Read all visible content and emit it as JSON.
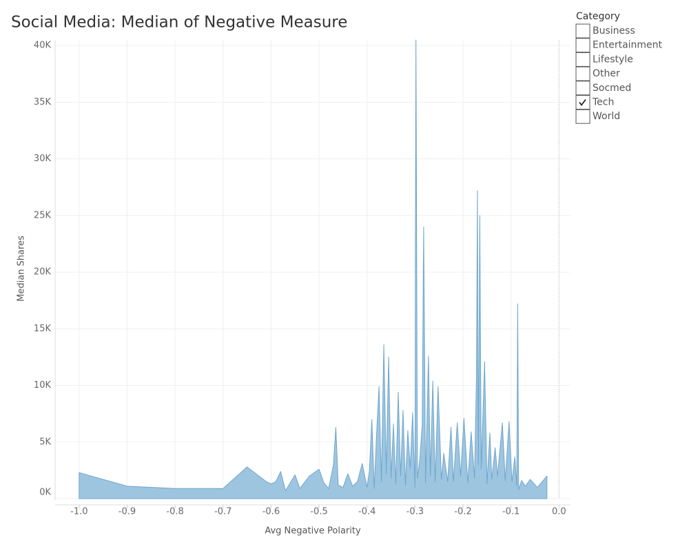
{
  "chart_data": {
    "type": "area",
    "title": "Social Media: Median of Negative Measure",
    "x_label": "Avg Negative Polarity",
    "y_label": "Median Shares",
    "color": "#9ec5e0",
    "line_color": "#6fa6cc",
    "grid": true,
    "xlim": [
      -1.05,
      0.024
    ],
    "ylim": [
      0,
      40500
    ],
    "xticks": [
      {
        "value": -1,
        "label": "-1.0"
      },
      -0.9,
      -0.8,
      -0.7,
      -0.6,
      -0.5,
      -0.4,
      -0.3,
      -0.2,
      -0.1,
      {
        "value": 0,
        "label": "0.0"
      }
    ],
    "yticks": [
      {
        "value": 0,
        "label": "0K"
      },
      {
        "value": 5000,
        "label": "5K"
      },
      {
        "value": 10000,
        "label": "10K"
      },
      {
        "value": 15000,
        "label": "15K"
      },
      {
        "value": 20000,
        "label": "20K"
      },
      {
        "value": 25000,
        "label": "25K"
      },
      {
        "value": 30000,
        "label": "30K"
      },
      {
        "value": 35000,
        "label": "35K"
      },
      {
        "value": 40000,
        "label": "40K"
      }
    ],
    "x": [
      -1.0,
      -0.9,
      -0.8,
      -0.7,
      -0.65,
      -0.61,
      -0.6,
      -0.59,
      -0.58,
      -0.57,
      -0.55,
      -0.54,
      -0.52,
      -0.5,
      -0.49,
      -0.48,
      -0.47,
      -0.465,
      -0.46,
      -0.45,
      -0.44,
      -0.43,
      -0.42,
      -0.41,
      -0.4,
      -0.395,
      -0.39,
      -0.385,
      -0.38,
      -0.375,
      -0.37,
      -0.365,
      -0.36,
      -0.355,
      -0.35,
      -0.345,
      -0.34,
      -0.335,
      -0.33,
      -0.325,
      -0.32,
      -0.315,
      -0.31,
      -0.305,
      -0.3,
      -0.298,
      -0.295,
      -0.29,
      -0.285,
      -0.282,
      -0.278,
      -0.272,
      -0.268,
      -0.263,
      -0.258,
      -0.252,
      -0.245,
      -0.24,
      -0.232,
      -0.225,
      -0.22,
      -0.212,
      -0.205,
      -0.198,
      -0.19,
      -0.183,
      -0.176,
      -0.172,
      -0.17,
      -0.168,
      -0.165,
      -0.162,
      -0.155,
      -0.15,
      -0.144,
      -0.14,
      -0.133,
      -0.128,
      -0.118,
      -0.112,
      -0.104,
      -0.098,
      -0.092,
      -0.088,
      -0.086,
      -0.084,
      -0.078,
      -0.07,
      -0.06,
      -0.045,
      -0.025
    ],
    "values": [
      2300,
      1100,
      900,
      900,
      2800,
      1500,
      1300,
      1500,
      2400,
      700,
      2100,
      900,
      2000,
      2600,
      1400,
      900,
      3000,
      6300,
      1200,
      1000,
      2200,
      1100,
      1500,
      3100,
      1000,
      2500,
      7000,
      900,
      5800,
      9900,
      1500,
      13600,
      2200,
      12500,
      1800,
      6600,
      1300,
      9400,
      2000,
      7800,
      1200,
      6000,
      2700,
      7600,
      1000,
      40500,
      1800,
      3500,
      6500,
      24000,
      1400,
      12600,
      2000,
      10400,
      1500,
      9900,
      1700,
      4000,
      1500,
      6300,
      1500,
      6700,
      2000,
      7100,
      1400,
      5900,
      1800,
      10600,
      27200,
      3000,
      25000,
      2600,
      12100,
      1300,
      5800,
      1700,
      4500,
      2000,
      6700,
      1600,
      6800,
      1500,
      3700,
      1100,
      17200,
      800,
      1600,
      1100,
      1700,
      1000,
      2000
    ]
  },
  "filter": {
    "title": "Category",
    "items": [
      {
        "label": "Business",
        "checked": false
      },
      {
        "label": "Entertainment",
        "checked": false
      },
      {
        "label": "Lifestyle",
        "checked": false
      },
      {
        "label": "Other",
        "checked": false
      },
      {
        "label": "Socmed",
        "checked": false
      },
      {
        "label": "Tech",
        "checked": true
      },
      {
        "label": "World",
        "checked": false
      }
    ]
  }
}
